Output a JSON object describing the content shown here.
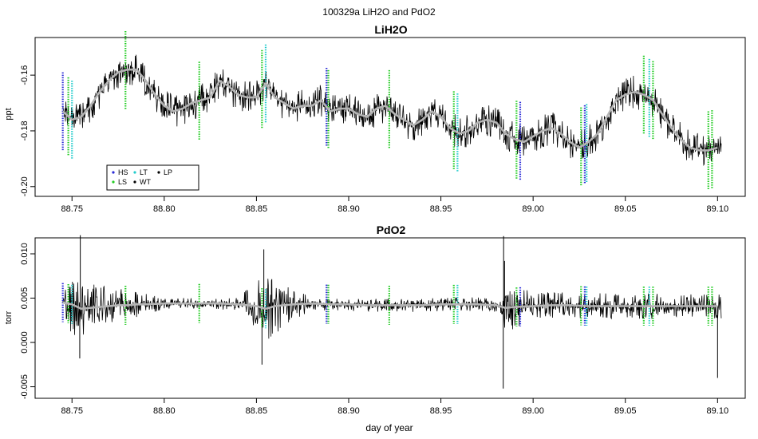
{
  "page_title": "100329a   LiH2O and PdO2",
  "x_axis_label": "day of year",
  "colors": {
    "signal": "#000000",
    "smooth": "#b4b4b4",
    "HS": "#2a2ad6",
    "LS": "#22cc22",
    "LT": "#22cccc",
    "WT": "#000000",
    "LP": "#000000"
  },
  "chart_data": [
    {
      "type": "line",
      "title": "LiH2O",
      "xlabel": "",
      "ylabel": "ppt",
      "xlim": [
        88.73,
        89.115
      ],
      "ylim": [
        -0.2035,
        -0.1465
      ],
      "x_ticks": [
        88.75,
        88.8,
        88.85,
        88.9,
        88.95,
        89.0,
        89.05,
        89.1
      ],
      "x_tick_labels": [
        "88.75",
        "88.80",
        "88.85",
        "88.90",
        "88.95",
        "89.00",
        "89.05",
        "89.10"
      ],
      "y_ticks": [
        -0.2,
        -0.18,
        -0.16
      ],
      "y_tick_labels": [
        "-0.20",
        "-0.18",
        "-0.16"
      ],
      "x_range": [
        88.745,
        89.102
      ],
      "series": [
        {
          "name": "smoothed",
          "x": [
            88.745,
            88.75,
            88.755,
            88.76,
            88.765,
            88.77,
            88.775,
            88.78,
            88.785,
            88.79,
            88.795,
            88.8,
            88.805,
            88.81,
            88.815,
            88.82,
            88.825,
            88.83,
            88.835,
            88.84,
            88.845,
            88.85,
            88.855,
            88.86,
            88.865,
            88.87,
            88.875,
            88.88,
            88.885,
            88.89,
            88.895,
            88.9,
            88.905,
            88.91,
            88.915,
            88.92,
            88.925,
            88.93,
            88.935,
            88.94,
            88.945,
            88.95,
            88.955,
            88.96,
            88.965,
            88.97,
            88.975,
            88.98,
            88.985,
            88.99,
            88.995,
            89.0,
            89.005,
            89.01,
            89.015,
            89.02,
            89.025,
            89.03,
            89.035,
            89.04,
            89.045,
            89.05,
            89.055,
            89.06,
            89.065,
            89.07,
            89.075,
            89.08,
            89.085,
            89.09,
            89.095,
            89.1
          ],
          "values": [
            -0.173,
            -0.176,
            -0.175,
            -0.171,
            -0.166,
            -0.162,
            -0.159,
            -0.158,
            -0.158,
            -0.162,
            -0.167,
            -0.171,
            -0.173,
            -0.172,
            -0.17,
            -0.169,
            -0.168,
            -0.162,
            -0.164,
            -0.167,
            -0.168,
            -0.168,
            -0.163,
            -0.168,
            -0.17,
            -0.172,
            -0.171,
            -0.171,
            -0.169,
            -0.173,
            -0.172,
            -0.172,
            -0.174,
            -0.175,
            -0.172,
            -0.171,
            -0.174,
            -0.176,
            -0.178,
            -0.176,
            -0.173,
            -0.175,
            -0.179,
            -0.181,
            -0.18,
            -0.177,
            -0.176,
            -0.177,
            -0.181,
            -0.183,
            -0.184,
            -0.182,
            -0.18,
            -0.179,
            -0.181,
            -0.184,
            -0.186,
            -0.184,
            -0.181,
            -0.175,
            -0.169,
            -0.167,
            -0.166,
            -0.167,
            -0.169,
            -0.174,
            -0.179,
            -0.183,
            -0.186,
            -0.187,
            -0.187,
            -0.186
          ]
        }
      ],
      "raw_spread": 0.006,
      "markers": [
        {
          "x": 88.745,
          "color": "HS"
        },
        {
          "x": 88.748,
          "color": "LS"
        },
        {
          "x": 88.75,
          "color": "LT"
        },
        {
          "x": 88.779,
          "color": "LS"
        },
        {
          "x": 88.819,
          "color": "LS"
        },
        {
          "x": 88.853,
          "color": "LS"
        },
        {
          "x": 88.855,
          "color": "LT"
        },
        {
          "x": 88.888,
          "color": "HS"
        },
        {
          "x": 88.889,
          "color": "LS"
        },
        {
          "x": 88.922,
          "color": "LS"
        },
        {
          "x": 88.957,
          "color": "LS"
        },
        {
          "x": 88.959,
          "color": "LT"
        },
        {
          "x": 88.991,
          "color": "LS"
        },
        {
          "x": 88.993,
          "color": "HS"
        },
        {
          "x": 89.026,
          "color": "LS"
        },
        {
          "x": 89.028,
          "color": "HS"
        },
        {
          "x": 89.029,
          "color": "LT"
        },
        {
          "x": 89.06,
          "color": "LS"
        },
        {
          "x": 89.063,
          "color": "LT"
        },
        {
          "x": 89.065,
          "color": "LS"
        },
        {
          "x": 89.095,
          "color": "LS"
        },
        {
          "x": 89.097,
          "color": "LS"
        }
      ],
      "legend": {
        "position": "bottom-left",
        "entries": [
          {
            "label": "HS",
            "color": "HS"
          },
          {
            "label": "LS",
            "color": "LS"
          },
          {
            "label": "LT",
            "color": "LT"
          },
          {
            "label": "WT",
            "color": "WT"
          },
          {
            "label": "LP",
            "color": "LP"
          }
        ]
      }
    },
    {
      "type": "line",
      "title": "PdO2",
      "xlabel": "day of year",
      "ylabel": "torr",
      "xlim": [
        88.73,
        89.115
      ],
      "ylim": [
        -0.0063,
        0.0118
      ],
      "x_ticks": [
        88.75,
        88.8,
        88.85,
        88.9,
        88.95,
        89.0,
        89.05,
        89.1
      ],
      "x_tick_labels": [
        "88.75",
        "88.80",
        "88.85",
        "88.90",
        "88.95",
        "89.00",
        "89.05",
        "89.10"
      ],
      "y_ticks": [
        -0.005,
        0.0,
        0.005,
        0.01
      ],
      "y_tick_labels": [
        "-0.005",
        "0.000",
        "0.005",
        "0.010"
      ],
      "x_range": [
        88.745,
        89.102
      ],
      "series": [
        {
          "name": "smoothed",
          "x": [
            88.745,
            88.75,
            88.755,
            88.76,
            88.765,
            88.77,
            88.775,
            88.78,
            88.785,
            88.79,
            88.8,
            88.81,
            88.82,
            88.83,
            88.84,
            88.85,
            88.855,
            88.86,
            88.87,
            88.88,
            88.89,
            88.9,
            88.91,
            88.92,
            88.93,
            88.94,
            88.95,
            88.96,
            88.97,
            88.98,
            88.985,
            88.99,
            89.0,
            89.01,
            89.02,
            89.03,
            89.04,
            89.05,
            89.06,
            89.07,
            89.08,
            89.09,
            89.1
          ],
          "values": [
            0.0045,
            0.0043,
            0.0038,
            0.0039,
            0.004,
            0.0041,
            0.0042,
            0.0042,
            0.0043,
            0.0043,
            0.0044,
            0.0044,
            0.0044,
            0.0044,
            0.0043,
            0.0041,
            0.0038,
            0.0041,
            0.0043,
            0.0044,
            0.0043,
            0.0043,
            0.0042,
            0.0042,
            0.0042,
            0.0042,
            0.0043,
            0.0043,
            0.0043,
            0.0042,
            0.0039,
            0.004,
            0.0041,
            0.0042,
            0.0042,
            0.0041,
            0.0041,
            0.0041,
            0.0041,
            0.0041,
            0.0041,
            0.0041,
            0.0041
          ]
        }
      ],
      "noise_profile": [
        {
          "x": 88.745,
          "spread": 0.0008
        },
        {
          "x": 88.75,
          "spread": 0.0035
        },
        {
          "x": 88.76,
          "spread": 0.0028
        },
        {
          "x": 88.78,
          "spread": 0.0018
        },
        {
          "x": 88.8,
          "spread": 0.0006
        },
        {
          "x": 88.84,
          "spread": 0.0007
        },
        {
          "x": 88.853,
          "spread": 0.004
        },
        {
          "x": 88.865,
          "spread": 0.0025
        },
        {
          "x": 88.88,
          "spread": 0.0007
        },
        {
          "x": 88.982,
          "spread": 0.0008
        },
        {
          "x": 88.985,
          "spread": 0.003
        },
        {
          "x": 89.0,
          "spread": 0.0015
        },
        {
          "x": 89.1,
          "spread": 0.0014
        }
      ],
      "spikes": [
        {
          "x": 88.7545,
          "y": 0.0121
        },
        {
          "x": 88.7542,
          "y": -0.0018
        },
        {
          "x": 88.854,
          "y": 0.0105
        },
        {
          "x": 88.853,
          "y": -0.0025
        },
        {
          "x": 88.984,
          "y": 0.012
        },
        {
          "x": 88.9838,
          "y": -0.0052
        },
        {
          "x": 88.9845,
          "y": 0.0092
        },
        {
          "x": 89.1,
          "y": -0.004
        }
      ],
      "markers": [
        {
          "x": 88.745,
          "color": "HS"
        },
        {
          "x": 88.748,
          "color": "LS"
        },
        {
          "x": 88.75,
          "color": "LT"
        },
        {
          "x": 88.779,
          "color": "LS"
        },
        {
          "x": 88.819,
          "color": "LS"
        },
        {
          "x": 88.853,
          "color": "LS"
        },
        {
          "x": 88.855,
          "color": "LT"
        },
        {
          "x": 88.888,
          "color": "HS"
        },
        {
          "x": 88.889,
          "color": "LS"
        },
        {
          "x": 88.922,
          "color": "LS"
        },
        {
          "x": 88.957,
          "color": "LS"
        },
        {
          "x": 88.959,
          "color": "LT"
        },
        {
          "x": 88.991,
          "color": "LS"
        },
        {
          "x": 88.993,
          "color": "HS"
        },
        {
          "x": 89.026,
          "color": "LS"
        },
        {
          "x": 89.028,
          "color": "HS"
        },
        {
          "x": 89.029,
          "color": "LT"
        },
        {
          "x": 89.06,
          "color": "LS"
        },
        {
          "x": 89.063,
          "color": "LT"
        },
        {
          "x": 89.065,
          "color": "LS"
        },
        {
          "x": 89.095,
          "color": "LS"
        },
        {
          "x": 89.097,
          "color": "LS"
        }
      ]
    }
  ]
}
